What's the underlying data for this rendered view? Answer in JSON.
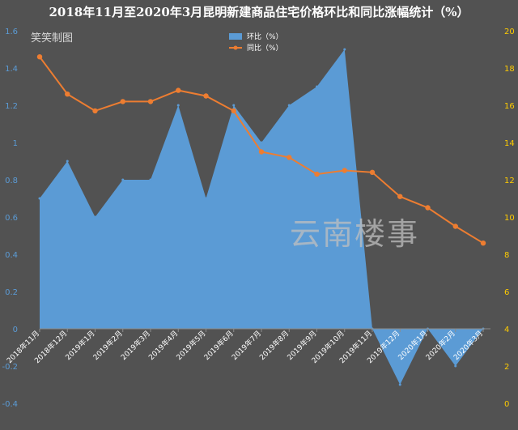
{
  "chart_data": {
    "type": "area",
    "title": "2018年11月至2020年3月昆明新建商品住宅价格环比和同比涨幅统计（%）",
    "categories": [
      "2018年11月",
      "2018年12月",
      "2019年1月",
      "2019年2月",
      "2019年3月",
      "2019年4月",
      "2019年5月",
      "2019年6月",
      "2019年7月",
      "2019年8月",
      "2019年9月",
      "2019年10月",
      "2019年11月",
      "2019年12月",
      "2020年1月",
      "2020年2月",
      "2020年3月"
    ],
    "series": [
      {
        "name": "环比（%）",
        "type": "area",
        "axis": "left",
        "values": [
          0.7,
          0.9,
          0.6,
          0.8,
          0.8,
          1.2,
          0.7,
          1.2,
          1.0,
          1.2,
          1.3,
          1.5,
          0.0,
          -0.3,
          0.0,
          -0.2,
          0.0
        ]
      },
      {
        "name": "同比（%）",
        "type": "line",
        "axis": "right",
        "values": [
          18.6,
          16.6,
          15.7,
          16.2,
          16.2,
          16.8,
          16.5,
          15.7,
          13.5,
          13.2,
          12.3,
          12.5,
          12.4,
          11.1,
          10.5,
          9.5,
          8.6
        ]
      }
    ],
    "y_left": {
      "ylim": [
        -0.4,
        1.6
      ],
      "ticks": [
        "-0.4",
        "-0.2",
        "0",
        "0.2",
        "0.4",
        "0.6",
        "0.8",
        "1",
        "1.2",
        "1.4",
        "1.6"
      ]
    },
    "y_right": {
      "ylim": [
        0,
        20
      ],
      "ticks": [
        "0",
        "2",
        "4",
        "6",
        "8",
        "10",
        "12",
        "14",
        "16",
        "18",
        "20"
      ]
    },
    "legend_position": "top-center",
    "grid": false,
    "colors": {
      "background": "#525252",
      "area": "#5b9bd5",
      "line": "#ed7d31",
      "left_axis_text": "#5b9bd5",
      "right_axis_text": "#ffcc00",
      "title": "#ffffff",
      "watermark": "#bfbfbf"
    }
  },
  "annotations": {
    "author": "笑笑制图",
    "watermark": "云南楼事"
  }
}
